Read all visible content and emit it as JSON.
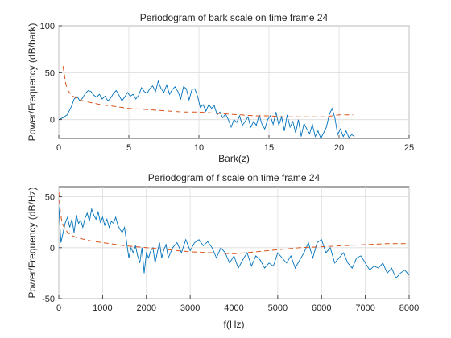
{
  "chart_data": [
    {
      "type": "line",
      "title": "Periodogram of bark scale on time frame 24",
      "xlabel": "Bark(z)",
      "ylabel": "Power/Frequency (dB/bark)",
      "xlim": [
        0,
        25
      ],
      "ylim": [
        -20,
        100
      ],
      "xticks": [
        0,
        5,
        10,
        15,
        20,
        25
      ],
      "yticks": [
        0,
        50,
        100
      ],
      "grid": true,
      "colors": {
        "spectrum": "#0072BD",
        "envelope": "#D95319"
      },
      "series": [
        {
          "style": "solid",
          "x": [
            0,
            0.3,
            0.6,
            0.9,
            1.1,
            1.3,
            1.5,
            1.7,
            1.9,
            2.1,
            2.3,
            2.5,
            2.7,
            2.9,
            3.1,
            3.3,
            3.5,
            3.7,
            3.9,
            4.1,
            4.3,
            4.5,
            4.7,
            4.9,
            5.1,
            5.3,
            5.5,
            5.7,
            5.9,
            6.1,
            6.3,
            6.5,
            6.7,
            6.9,
            7.1,
            7.3,
            7.5,
            7.7,
            7.9,
            8.1,
            8.3,
            8.5,
            8.7,
            8.9,
            9.1,
            9.3,
            9.5,
            9.7,
            9.9,
            10.1,
            10.3,
            10.5,
            10.7,
            10.9,
            11.1,
            11.3,
            11.5,
            11.7,
            11.9,
            12.1,
            12.3,
            12.5,
            12.7,
            12.9,
            13.1,
            13.3,
            13.5,
            13.7,
            13.9,
            14.1,
            14.3,
            14.5,
            14.7,
            14.9,
            15.1,
            15.3,
            15.5,
            15.7,
            15.9,
            16.1,
            16.3,
            16.5,
            16.7,
            16.9,
            17.1,
            17.3,
            17.5,
            17.7,
            17.9,
            18.1,
            18.3,
            18.5,
            18.7,
            18.9,
            19.1,
            19.3,
            19.5,
            19.7,
            19.9,
            20.1,
            20.3,
            20.5,
            20.7,
            20.9,
            21.1
          ],
          "y": [
            0,
            2,
            5,
            14,
            22,
            25,
            20,
            23,
            28,
            31,
            30,
            26,
            24,
            27,
            22,
            25,
            20,
            23,
            28,
            31,
            26,
            20,
            24,
            29,
            25,
            27,
            22,
            26,
            34,
            30,
            28,
            33,
            36,
            30,
            41,
            33,
            29,
            37,
            27,
            32,
            35,
            30,
            22,
            35,
            33,
            21,
            32,
            33,
            25,
            13,
            16,
            9,
            16,
            12,
            15,
            5,
            8,
            2,
            6,
            0,
            -8,
            0,
            -3,
            4,
            -6,
            -2,
            3,
            -8,
            -2,
            -6,
            5,
            -5,
            -10,
            0,
            4,
            -5,
            8,
            -6,
            3,
            -12,
            5,
            -8,
            -2,
            -14,
            0,
            -18,
            -4,
            -10,
            -15,
            -5,
            -18,
            -12,
            -20,
            -14,
            -8,
            5,
            12,
            2,
            -16,
            -10,
            -18,
            -12,
            -19,
            -16,
            -18
          ]
        },
        {
          "style": "dashed",
          "x": [
            0.3,
            0.5,
            0.7,
            1,
            1.5,
            2,
            3,
            4,
            5,
            6,
            7,
            8,
            9,
            10,
            11,
            12,
            13,
            14,
            15,
            16,
            17,
            18,
            19,
            20,
            21
          ],
          "y": [
            57,
            38,
            30,
            25,
            21,
            19,
            16,
            14,
            12,
            11,
            10,
            9,
            8,
            8,
            7,
            6,
            5,
            4,
            4,
            3,
            3,
            3,
            3,
            5,
            5
          ]
        }
      ]
    },
    {
      "type": "line",
      "title": "Periodogram of f scale on time frame 24",
      "xlabel": "f(Hz)",
      "ylabel": "Power/Frequency (dB/Hz)",
      "xlim": [
        0,
        8000
      ],
      "ylim": [
        -50,
        60
      ],
      "xticks": [
        0,
        1000,
        2000,
        3000,
        4000,
        5000,
        6000,
        7000,
        8000
      ],
      "yticks": [
        -50,
        0,
        50
      ],
      "grid": true,
      "colors": {
        "spectrum": "#0072BD",
        "envelope": "#D95319"
      },
      "series": [
        {
          "style": "solid",
          "x": [
            0,
            50,
            100,
            150,
            200,
            250,
            300,
            350,
            400,
            450,
            500,
            550,
            600,
            650,
            700,
            750,
            800,
            850,
            900,
            950,
            1000,
            1050,
            1100,
            1150,
            1200,
            1250,
            1300,
            1350,
            1400,
            1450,
            1500,
            1550,
            1600,
            1650,
            1700,
            1750,
            1800,
            1850,
            1900,
            1950,
            2000,
            2050,
            2100,
            2150,
            2200,
            2250,
            2300,
            2350,
            2400,
            2450,
            2500,
            2600,
            2700,
            2800,
            2900,
            3000,
            3100,
            3200,
            3300,
            3400,
            3500,
            3600,
            3700,
            3800,
            3900,
            4000,
            4100,
            4200,
            4300,
            4400,
            4500,
            4600,
            4700,
            4800,
            4900,
            5000,
            5100,
            5200,
            5300,
            5400,
            5500,
            5600,
            5700,
            5800,
            5900,
            6000,
            6100,
            6200,
            6300,
            6400,
            6500,
            6600,
            6700,
            6800,
            6900,
            7000,
            7100,
            7200,
            7300,
            7400,
            7500,
            7600,
            7700,
            7800,
            7900,
            8000
          ],
          "y": [
            40,
            5,
            15,
            25,
            30,
            20,
            28,
            15,
            32,
            24,
            27,
            20,
            29,
            34,
            26,
            38,
            32,
            28,
            35,
            25,
            30,
            22,
            28,
            20,
            26,
            24,
            30,
            22,
            18,
            15,
            20,
            5,
            -10,
            0,
            -5,
            2,
            -8,
            -15,
            0,
            -25,
            -5,
            -10,
            -3,
            0,
            -15,
            -5,
            5,
            -10,
            -2,
            3,
            -10,
            0,
            5,
            -5,
            8,
            -3,
            5,
            8,
            2,
            6,
            0,
            -10,
            0,
            -5,
            -15,
            -8,
            -20,
            -12,
            -5,
            -18,
            -8,
            -12,
            -20,
            -15,
            -18,
            -5,
            -10,
            -15,
            -8,
            -20,
            -12,
            -5,
            5,
            -10,
            5,
            8,
            -5,
            0,
            -15,
            -10,
            -5,
            -15,
            -20,
            -10,
            -8,
            -15,
            -22,
            -18,
            -20,
            -15,
            -25,
            -20,
            -30,
            -25,
            -22,
            -27
          ]
        },
        {
          "style": "dashed",
          "x": [
            0,
            30,
            60,
            100,
            150,
            200,
            300,
            400,
            500,
            700,
            1000,
            1500,
            2000,
            2500,
            3000,
            3500,
            4000,
            4500,
            5000,
            5500,
            6000,
            6500,
            7000,
            7500,
            8000
          ],
          "y": [
            55,
            38,
            28,
            22,
            18,
            15,
            12,
            10,
            9,
            7,
            5,
            2,
            0,
            -2,
            -4,
            -5,
            -6,
            -4,
            -2,
            0,
            1,
            2,
            3,
            4,
            4
          ]
        }
      ]
    }
  ]
}
